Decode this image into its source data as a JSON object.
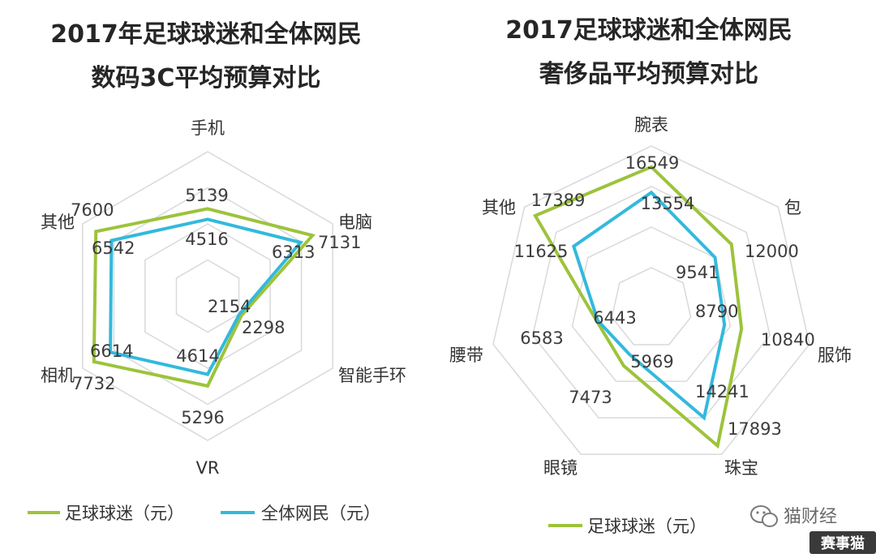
{
  "chart_data": [
    {
      "type": "radar",
      "title_line1": "2017年足球球迷和全体网民",
      "title_line2": "数码3C平均预算对比",
      "axes": [
        "手机",
        "电脑",
        "智能手环",
        "VR",
        "相机",
        "其他"
      ],
      "series": [
        {
          "name": "足球球迷（元）",
          "color": "#9dc33b",
          "values": [
            5139,
            7131,
            2298,
            5296,
            7732,
            7600
          ]
        },
        {
          "name": "全体网民（元）",
          "color": "#33b9dc",
          "values": [
            4516,
            6313,
            2154,
            4614,
            6614,
            6542
          ]
        }
      ],
      "range": [
        0,
        8500
      ],
      "legend": [
        "足球球迷（元）",
        "全体网民（元）"
      ]
    },
    {
      "type": "radar",
      "title_line1": "2017足球球迷和全体网民",
      "title_line2": "奢侈品平均预算对比",
      "axes": [
        "腕表",
        "包",
        "服饰",
        "珠宝",
        "眼镜",
        "腰带",
        "其他"
      ],
      "series": [
        {
          "name": "足球球迷（元）",
          "color": "#9dc33b",
          "values": [
            16549,
            12000,
            10840,
            17893,
            7473,
            6583,
            17389
          ]
        },
        {
          "name": "全体网民",
          "color": "#33b9dc",
          "values": [
            13554,
            9541,
            8790,
            14241,
            5969,
            6443,
            11625
          ]
        }
      ],
      "range": [
        0,
        19000
      ],
      "legend": [
        "足球球迷（元）"
      ]
    }
  ],
  "watermark": {
    "text": "猫财经",
    "badge": "赛事猫",
    "icon": "wechat-icon"
  }
}
